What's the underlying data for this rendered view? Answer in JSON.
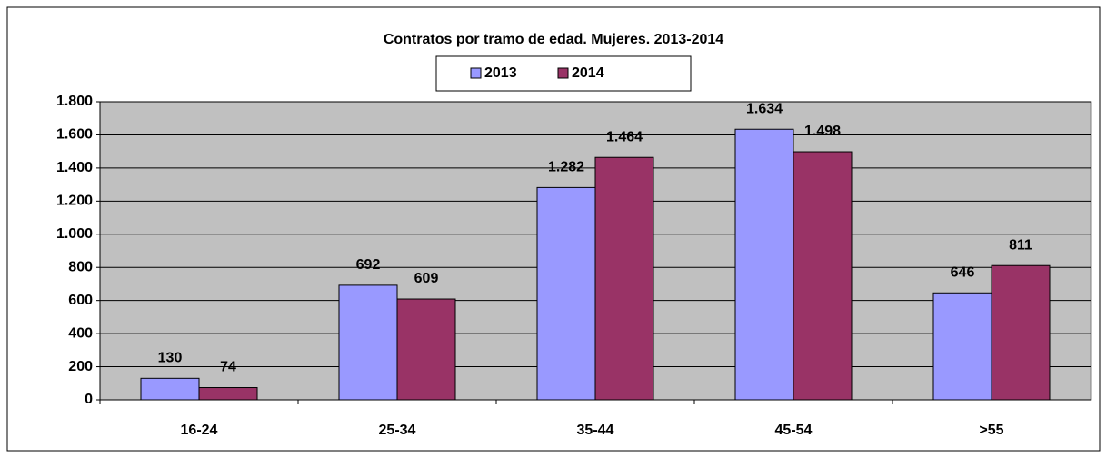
{
  "chart_data": {
    "type": "bar",
    "title": "Contratos por tramo de edad. Mujeres. 2013-2014",
    "categories": [
      "16-24",
      "25-34",
      "35-44",
      "45-54",
      ">55"
    ],
    "series": [
      {
        "name": "2013",
        "color": "#9999ff",
        "values": [
          130,
          692,
          1282,
          1634,
          646
        ],
        "value_labels": [
          "130",
          "692",
          "1.282",
          "1.634",
          "646"
        ]
      },
      {
        "name": "2014",
        "color": "#993366",
        "values": [
          74,
          609,
          1464,
          1498,
          811
        ],
        "value_labels": [
          "74",
          "609",
          "1.464",
          "1.498",
          "811"
        ]
      }
    ],
    "ylim": [
      0,
      1800
    ],
    "yticks": [
      0,
      200,
      400,
      600,
      800,
      {
        "value": 1000,
        "label": "1.000"
      },
      {
        "value": 1200,
        "label": "1.200"
      },
      {
        "value": 1400,
        "label": "1.400"
      },
      {
        "value": 1600,
        "label": "1.600"
      },
      {
        "value": 1800,
        "label": "1.800"
      }
    ],
    "grid": true,
    "legend": "top"
  }
}
